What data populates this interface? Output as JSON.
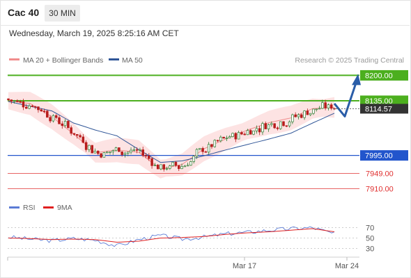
{
  "header": {
    "symbol": "Cac 40",
    "timeframe": "30 MIN",
    "datetime": "Wednesday, March 19, 2025 8:25:16 AM CET"
  },
  "legend": {
    "ma20": {
      "label": "MA 20 + Bollinger Bands",
      "color": "#f08c8c"
    },
    "ma50": {
      "label": "MA 50",
      "color": "#2f5597"
    },
    "copyright": "Research © 2025 Trading Central"
  },
  "price_levels": [
    {
      "value": 8200,
      "label": "8200.00",
      "kind": "resistance-target"
    },
    {
      "value": 8135,
      "label": "8135.00",
      "kind": "pivot"
    },
    {
      "value": 7995,
      "label": "7995.00",
      "kind": "support"
    },
    {
      "value": 7949,
      "label": "7949.00",
      "kind": "support"
    },
    {
      "value": 7910,
      "label": "7910.00",
      "kind": "support"
    }
  ],
  "current_price": {
    "value": 8114.57,
    "label": "8114.57"
  },
  "rsi_legend": {
    "rsi": {
      "label": "RSI",
      "color": "#5b7bd5"
    },
    "ma": {
      "label": "9MA",
      "color": "#e02020"
    }
  },
  "rsi_ticks": [
    "70",
    "50",
    "30"
  ],
  "x_axis_labels": [
    "Mar 17",
    "Mar 24"
  ],
  "colors": {
    "bull": "#2e7d32",
    "bear": "#b71c1c",
    "green_level": "#4caf1e",
    "blue_level": "#2255cc",
    "red_level": "#e03030",
    "arrow": "#2a5da8",
    "band_fill": "#fde3e3",
    "dark_label": "#333333"
  },
  "chart_data": [
    {
      "type": "line",
      "title": "",
      "series": [
        {
          "name": "MA 20 + Bollinger Bands",
          "x": [
            0,
            20,
            40,
            60,
            80,
            100,
            120,
            140,
            160,
            180,
            200,
            220,
            240,
            260,
            280,
            300
          ],
          "values": [
            8135,
            8128,
            8094,
            8050,
            8002,
            8009,
            8003,
            7960,
            7972,
            8012,
            8037,
            8060,
            8079,
            8091,
            8115,
            8118
          ]
        },
        {
          "name": "MA 50",
          "x": [
            0,
            20,
            40,
            60,
            80,
            100,
            120,
            140,
            160,
            180,
            200,
            220,
            240,
            260,
            280,
            300
          ],
          "values": [
            8133,
            8121,
            8109,
            8078,
            8060,
            8045,
            8010,
            7977,
            7981,
            7994,
            8009,
            8023,
            8037,
            8052,
            8078,
            8103
          ]
        }
      ],
      "levels": [
        8200,
        8135,
        7995,
        7949,
        7910
      ],
      "last_price": 8114.57,
      "ylim": [
        7900,
        8215
      ],
      "x_labels": [
        "Mar 17",
        "Mar 24"
      ]
    },
    {
      "type": "line",
      "title": "",
      "series": [
        {
          "name": "RSI",
          "x": [
            0,
            20,
            40,
            60,
            80,
            100,
            120,
            140,
            160,
            180,
            200,
            220,
            240,
            260,
            280,
            300
          ],
          "values": [
            52,
            48,
            45,
            49,
            46,
            35,
            47,
            55,
            48,
            52,
            58,
            61,
            65,
            68,
            70,
            58
          ]
        },
        {
          "name": "9MA",
          "x": [
            0,
            20,
            40,
            60,
            80,
            100,
            120,
            140,
            160,
            180,
            200,
            220,
            240,
            260,
            280,
            300
          ],
          "values": [
            50,
            49,
            47,
            48,
            47,
            42,
            44,
            50,
            51,
            53,
            57,
            60,
            62,
            65,
            68,
            62
          ]
        }
      ],
      "yticks": [
        70,
        50,
        30
      ],
      "ylim": [
        20,
        80
      ]
    }
  ]
}
